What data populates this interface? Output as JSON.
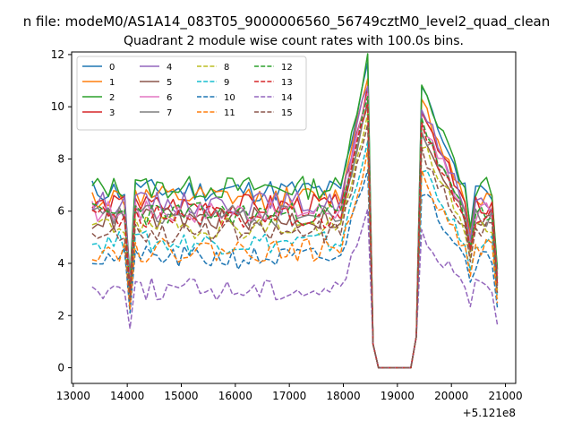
{
  "chart_data": {
    "type": "line",
    "suptitle": "n file: modeM0/AS1A14_083T05_9000006560_56749cztM0_level2_quad_clean",
    "title": "Quadrant 2 module wise count rates with 100.0s bins.",
    "xlabel": "",
    "ylabel": "",
    "x_offset_label": "+5.121e8",
    "xlim": [
      12970,
      21190
    ],
    "ylim": [
      -0.6,
      12.1
    ],
    "xticks": [
      13000,
      14000,
      15000,
      16000,
      17000,
      18000,
      19000,
      20000,
      21000
    ],
    "yticks": [
      0,
      2,
      4,
      6,
      8,
      10,
      12
    ],
    "x_start": 13350,
    "x_step": 100,
    "legend_loc": "upper left",
    "legend_ncol": 4,
    "series": [
      {
        "name": "0",
        "color": "#1f77b4",
        "dash": "solid",
        "base": 6.8,
        "seed": 11
      },
      {
        "name": "1",
        "color": "#ff7f0e",
        "dash": "solid",
        "base": 6.5,
        "seed": 12
      },
      {
        "name": "2",
        "color": "#2ca02c",
        "dash": "solid",
        "base": 6.9,
        "seed": 13
      },
      {
        "name": "3",
        "color": "#d62728",
        "dash": "solid",
        "base": 6.2,
        "seed": 14
      },
      {
        "name": "4",
        "color": "#9467bd",
        "dash": "solid",
        "base": 6.3,
        "seed": 15
      },
      {
        "name": "5",
        "color": "#8c564b",
        "dash": "solid",
        "base": 5.7,
        "seed": 16
      },
      {
        "name": "6",
        "color": "#e377c2",
        "dash": "solid",
        "base": 6.0,
        "seed": 17
      },
      {
        "name": "7",
        "color": "#7f7f7f",
        "dash": "solid",
        "base": 5.8,
        "seed": 18
      },
      {
        "name": "8",
        "color": "#bcbd22",
        "dash": "dashed",
        "base": 5.4,
        "seed": 19
      },
      {
        "name": "9",
        "color": "#17becf",
        "dash": "dashed",
        "base": 4.8,
        "seed": 20
      },
      {
        "name": "10",
        "color": "#1f77b4",
        "dash": "dashed",
        "base": 4.2,
        "seed": 21
      },
      {
        "name": "11",
        "color": "#ff7f0e",
        "dash": "dashed",
        "base": 4.5,
        "seed": 22
      },
      {
        "name": "12",
        "color": "#2ca02c",
        "dash": "dashed",
        "base": 5.9,
        "seed": 23
      },
      {
        "name": "13",
        "color": "#d62728",
        "dash": "dashed",
        "base": 5.8,
        "seed": 24
      },
      {
        "name": "14",
        "color": "#9467bd",
        "dash": "dashed",
        "base": 3.0,
        "seed": 25
      },
      {
        "name": "15",
        "color": "#8c564b",
        "dash": "dashed",
        "base": 5.2,
        "seed": 26
      }
    ]
  }
}
